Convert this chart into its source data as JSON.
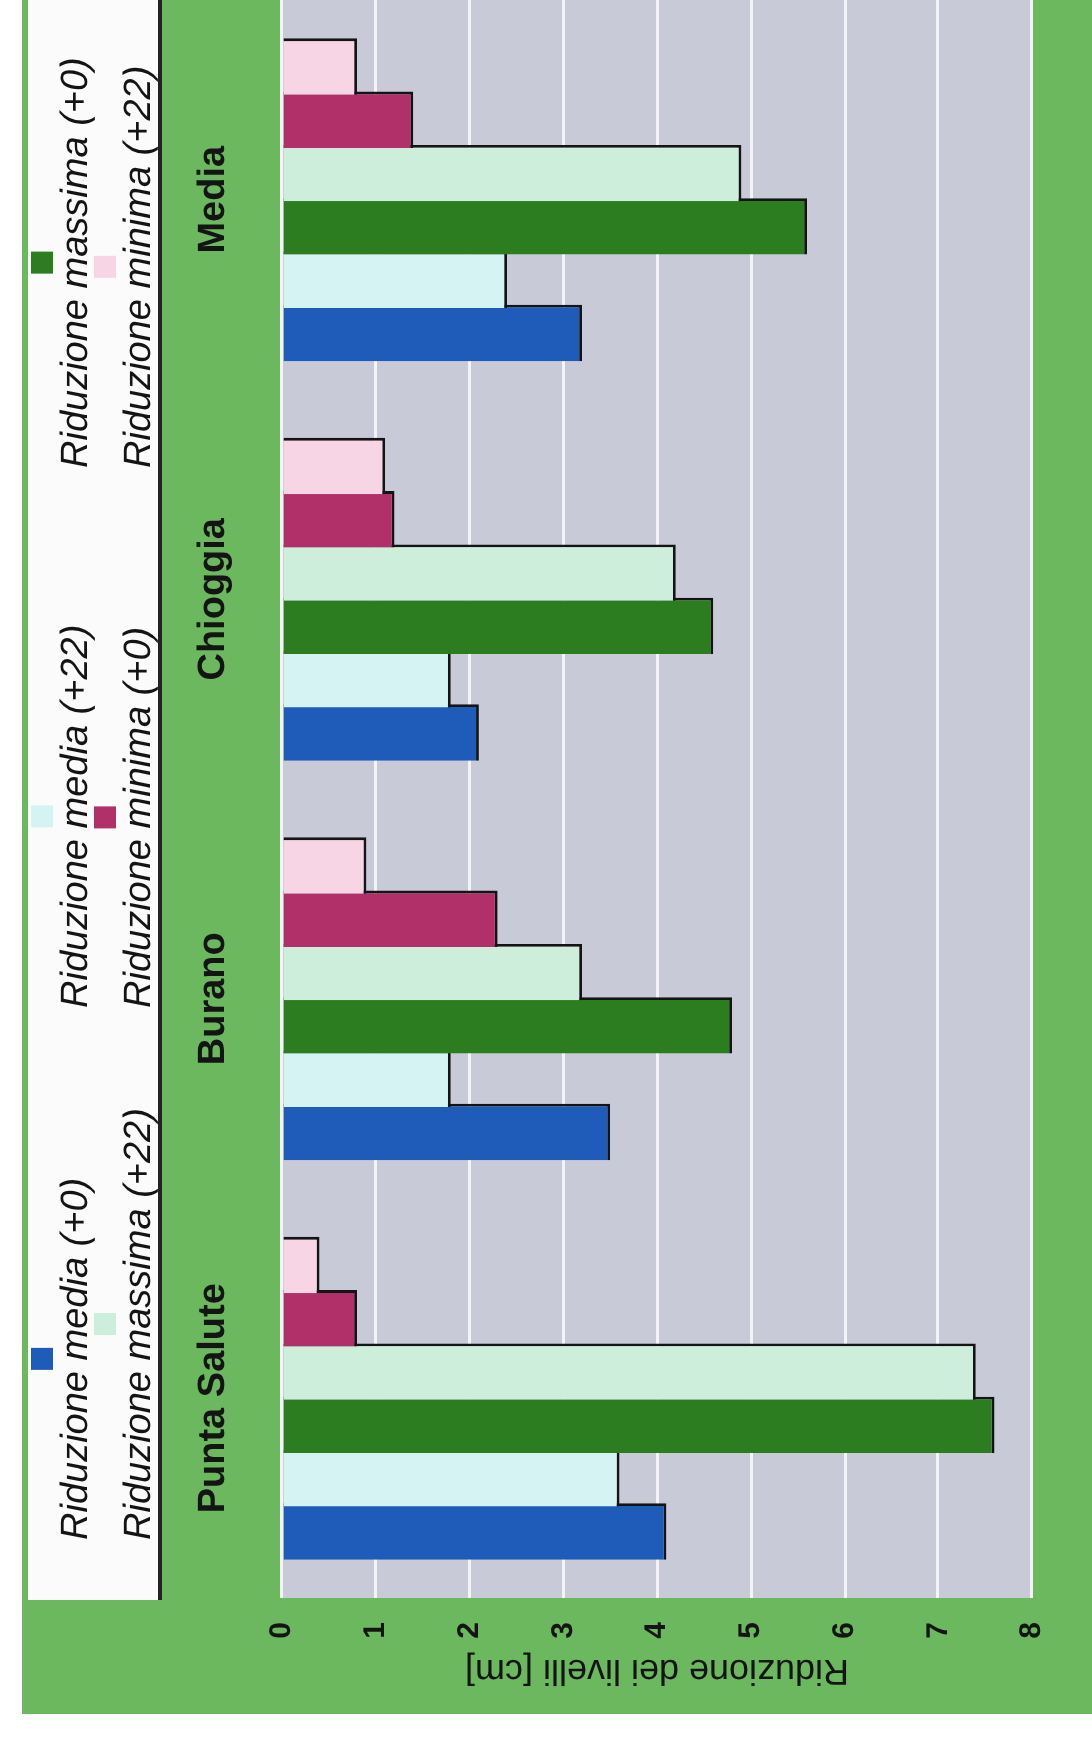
{
  "chart_data": {
    "type": "bar",
    "orientation": "horizontal",
    "xlabel": "Riduzione dei livelli [cm]",
    "categories": [
      "Media",
      "Chioggia",
      "Burano",
      "Punta Salute"
    ],
    "series": [
      {
        "name": "Riduzione media (+0)",
        "color": "#1f5bb8",
        "values": [
          3.2,
          2.1,
          3.5,
          4.1
        ]
      },
      {
        "name": "Riduzione media (+22)",
        "color": "#d5f3f3",
        "values": [
          2.4,
          1.8,
          1.8,
          3.6
        ]
      },
      {
        "name": "Riduzione massima (+0)",
        "color": "#2b7d1f",
        "values": [
          5.6,
          4.6,
          4.8,
          7.6
        ]
      },
      {
        "name": "Riduzione massima (+22)",
        "color": "#cdeedb",
        "values": [
          4.9,
          4.2,
          3.2,
          7.4
        ]
      },
      {
        "name": "Riduzione minima (+0)",
        "color": "#b2306a",
        "values": [
          1.4,
          1.2,
          2.3,
          0.8
        ]
      },
      {
        "name": "Riduzione minima (+22)",
        "color": "#f8d5e4",
        "values": [
          0.8,
          1.1,
          0.9,
          0.4
        ]
      }
    ],
    "xlim": [
      0,
      8
    ],
    "xticks": [
      0,
      1,
      2,
      3,
      4,
      5,
      6,
      7,
      8
    ],
    "grid": "x",
    "legend": "left"
  }
}
